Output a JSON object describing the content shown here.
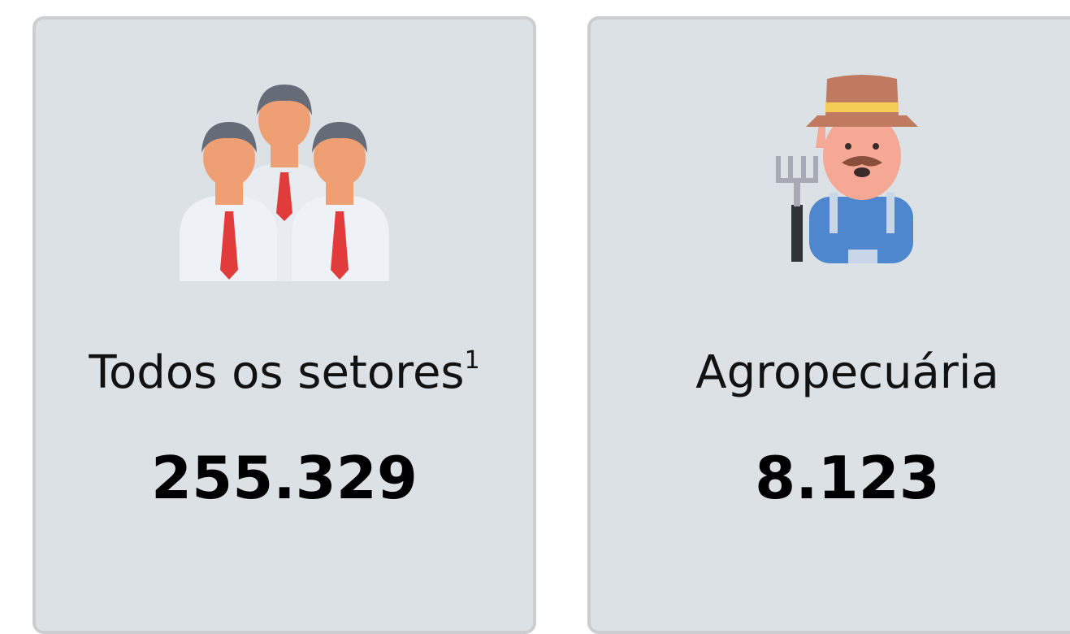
{
  "cards": [
    {
      "label": "Todos os setores",
      "note": "1",
      "value": "255.329"
    },
    {
      "label": "Agropecuária",
      "value": "8.123"
    }
  ]
}
